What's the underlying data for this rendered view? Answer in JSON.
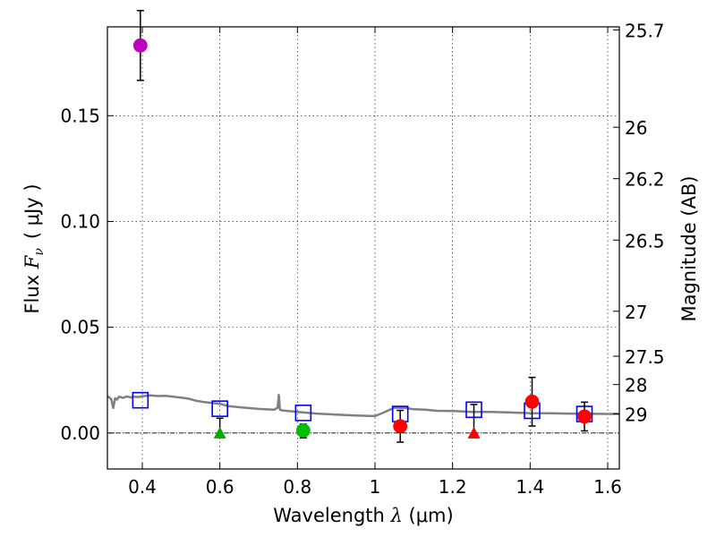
{
  "chart_data": {
    "type": "scatter",
    "title": "",
    "xlabel": "Wavelength λ (μm)",
    "xlabel_parts": {
      "text": "Wavelength ",
      "symbol": "λ",
      "units": " (μm)"
    },
    "ylabel": "Flux F_ν (μJy)",
    "ylabel_parts": {
      "text": "Flux ",
      "symbol": "F",
      "sub": "ν",
      "units": "( μJy )"
    },
    "y2label": "Magnitude (AB)",
    "xlim": [
      0.31,
      1.63
    ],
    "ylim": [
      -0.017,
      0.192
    ],
    "grid": true,
    "x_ticks": [
      {
        "value": 0.4,
        "label": "0.4"
      },
      {
        "value": 0.6,
        "label": "0.6"
      },
      {
        "value": 0.8,
        "label": "0.8"
      },
      {
        "value": 1.0,
        "label": "1"
      },
      {
        "value": 1.2,
        "label": "1.2"
      },
      {
        "value": 1.4,
        "label": "1.4"
      },
      {
        "value": 1.6,
        "label": "1.6"
      }
    ],
    "y_ticks": [
      {
        "value": 0.0,
        "label": "0.00"
      },
      {
        "value": 0.05,
        "label": "0.05"
      },
      {
        "value": 0.1,
        "label": "0.10"
      },
      {
        "value": 0.15,
        "label": "0.15"
      }
    ],
    "mag_ticks": [
      {
        "mag": 25.7,
        "label": "25.7"
      },
      {
        "mag": 26.0,
        "label": "26"
      },
      {
        "mag": 26.2,
        "label": "26.2"
      },
      {
        "mag": 26.5,
        "label": "26.5"
      },
      {
        "mag": 27.0,
        "label": "27"
      },
      {
        "mag": 27.5,
        "label": "27.5"
      },
      {
        "mag": 28.0,
        "label": "28"
      },
      {
        "mag": 29.0,
        "label": "29"
      }
    ],
    "model_spectrum": {
      "name": "model SED",
      "color": "#808080",
      "x": [
        0.31,
        0.32,
        0.325,
        0.33,
        0.335,
        0.34,
        0.35,
        0.36,
        0.37,
        0.38,
        0.39,
        0.4,
        0.42,
        0.44,
        0.46,
        0.48,
        0.5,
        0.52,
        0.54,
        0.56,
        0.58,
        0.6,
        0.62,
        0.65,
        0.7,
        0.74,
        0.749,
        0.752,
        0.755,
        0.76,
        0.8,
        0.85,
        0.9,
        0.95,
        1.0,
        1.02,
        1.05,
        1.08,
        1.1,
        1.13,
        1.16,
        1.2,
        1.25,
        1.3,
        1.35,
        1.4,
        1.45,
        1.5,
        1.55,
        1.6,
        1.63
      ],
      "y": [
        0.0175,
        0.016,
        0.0118,
        0.0165,
        0.0158,
        0.0172,
        0.0166,
        0.0173,
        0.0168,
        0.0172,
        0.017,
        0.0174,
        0.0178,
        0.0175,
        0.0176,
        0.0172,
        0.0167,
        0.0162,
        0.0152,
        0.0146,
        0.0142,
        0.0138,
        0.0128,
        0.0122,
        0.0114,
        0.011,
        0.012,
        0.018,
        0.011,
        0.0107,
        0.01,
        0.0092,
        0.0087,
        0.0083,
        0.008,
        0.0095,
        0.012,
        0.0118,
        0.0112,
        0.011,
        0.0105,
        0.0104,
        0.01,
        0.01,
        0.0097,
        0.0094,
        0.0093,
        0.0092,
        0.0091,
        0.009,
        0.009
      ]
    },
    "series": [
      {
        "name": "model photometry",
        "marker": "square",
        "color": "#0000ff",
        "points": [
          {
            "x": 0.395,
            "y": 0.0155
          },
          {
            "x": 0.6,
            "y": 0.0115
          },
          {
            "x": 0.815,
            "y": 0.0095
          },
          {
            "x": 1.065,
            "y": 0.009
          },
          {
            "x": 1.255,
            "y": 0.011
          },
          {
            "x": 1.405,
            "y": 0.0105
          },
          {
            "x": 1.54,
            "y": 0.009
          }
        ]
      },
      {
        "name": "purple detection",
        "marker": "circle",
        "color": "#bf00bf",
        "points": [
          {
            "x": 0.395,
            "y": 0.1832,
            "err_lo": 0.0165,
            "err_hi": 0.0165
          }
        ]
      },
      {
        "name": "green detection",
        "marker": "circle",
        "color": "#00bf00",
        "points": [
          {
            "x": 0.815,
            "y": 0.0012,
            "err_lo": 0.0035,
            "err_hi": 0.003
          }
        ]
      },
      {
        "name": "green upper limit",
        "marker": "triangle",
        "color": "#00aa00",
        "points": [
          {
            "x": 0.6,
            "y": 0.0,
            "err_lo": 0.0,
            "err_hi": 0.007
          }
        ]
      },
      {
        "name": "red detections",
        "marker": "circle",
        "color": "#ff0000",
        "points": [
          {
            "x": 1.065,
            "y": 0.0032,
            "err_lo": 0.0075,
            "err_hi": 0.0075
          },
          {
            "x": 1.405,
            "y": 0.0148,
            "err_lo": 0.0115,
            "err_hi": 0.0115
          },
          {
            "x": 1.54,
            "y": 0.0078,
            "err_lo": 0.0068,
            "err_hi": 0.0068
          }
        ]
      },
      {
        "name": "red upper limit",
        "marker": "triangle",
        "color": "#ff0000",
        "points": [
          {
            "x": 1.255,
            "y": 0.0,
            "err_lo": 0.0,
            "err_hi": 0.0135
          }
        ]
      }
    ]
  }
}
